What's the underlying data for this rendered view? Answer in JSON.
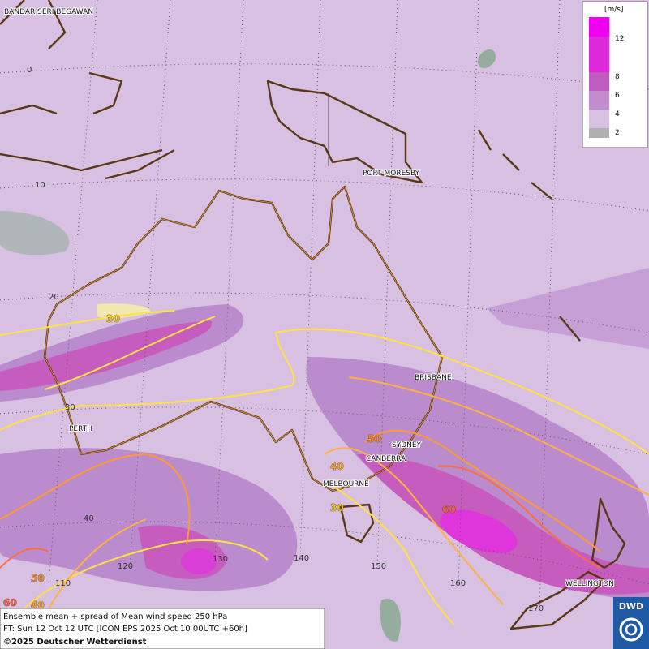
{
  "map": {
    "cities": [
      "BANDAR SERI BEGAWAN",
      "PORT MORESBY",
      "BRISBANE",
      "SYDNEY",
      "CANBERRA",
      "MELBOURNE",
      "PERTH",
      "WELLINGTON"
    ],
    "latitude_labels": [
      "0",
      "10",
      "20",
      "30",
      "40"
    ],
    "longitude_labels": [
      "110",
      "120",
      "130",
      "140",
      "150",
      "160",
      "170"
    ],
    "contour_labels": [
      "30",
      "30",
      "40",
      "40",
      "50",
      "50",
      "60",
      "60"
    ]
  },
  "legend": {
    "unit": "[m/s]",
    "ticks": [
      "12",
      "8",
      "6",
      "4",
      "2"
    ]
  },
  "caption": {
    "lines": [
      "Ensemble mean + spread of Mean wind speed 250 hPa",
      "FT: Sun 12 Oct 12 UTC [ICON EPS 2025 Oct 10 00UTC +60h]",
      "©2025 Deutscher Wetterdienst"
    ]
  },
  "logo": {
    "text": "DWD"
  }
}
